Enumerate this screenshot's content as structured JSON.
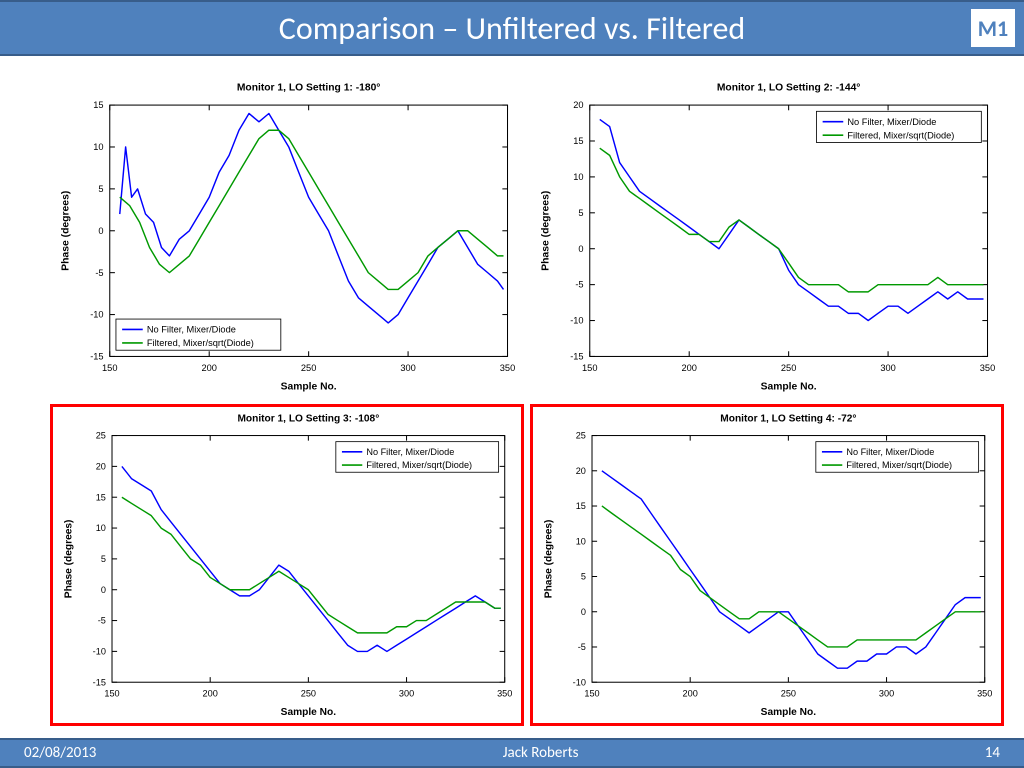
{
  "header": {
    "title": "Comparison – Unfiltered vs. Filtered",
    "badge": "M1"
  },
  "footer": {
    "date": "02/08/2013",
    "author": "Jack Roberts",
    "page": "14"
  },
  "colors": {
    "header_bg": "#4f81bd",
    "header_border": "#385d8a",
    "highlight_border": "#ff0000",
    "series_nofilter": "#0000ff",
    "series_filtered": "#009900",
    "axis": "#000000"
  },
  "legend": {
    "items": [
      {
        "label": "No Filter, Mixer/Diode",
        "color": "#0000ff"
      },
      {
        "label": "Filtered, Mixer/sqrt(Diode)",
        "color": "#009900"
      }
    ]
  },
  "axes": {
    "xlabel": "Sample No.",
    "ylabel": "Phase (degrees)",
    "x": {
      "min": 150,
      "max": 350,
      "step": 50
    }
  },
  "charts": [
    {
      "title": "Monitor 1, LO Setting 1: -180°",
      "legend_pos": "bottom-left",
      "y": {
        "min": -15,
        "max": 15,
        "step": 5
      },
      "highlight": false,
      "series": [
        {
          "key": "nofilter",
          "color": "#0000ff",
          "x": [
            155,
            158,
            161,
            164,
            168,
            172,
            176,
            180,
            185,
            190,
            195,
            200,
            205,
            210,
            215,
            220,
            225,
            230,
            235,
            240,
            245,
            250,
            255,
            260,
            265,
            270,
            275,
            280,
            285,
            290,
            295,
            300,
            305,
            310,
            315,
            320,
            325,
            330,
            335,
            340,
            345,
            348
          ],
          "y": [
            2,
            10,
            4,
            5,
            2,
            1,
            -2,
            -3,
            -1,
            0,
            2,
            4,
            7,
            9,
            12,
            14,
            13,
            14,
            12,
            10,
            7,
            4,
            2,
            0,
            -3,
            -6,
            -8,
            -9,
            -10,
            -11,
            -10,
            -8,
            -6,
            -4,
            -2,
            -1,
            0,
            -2,
            -4,
            -5,
            -6,
            -7
          ]
        },
        {
          "key": "filtered",
          "color": "#009900",
          "x": [
            155,
            160,
            165,
            170,
            175,
            180,
            185,
            190,
            195,
            200,
            205,
            210,
            215,
            220,
            225,
            230,
            235,
            240,
            245,
            250,
            255,
            260,
            265,
            270,
            275,
            280,
            285,
            290,
            295,
            300,
            305,
            310,
            315,
            320,
            325,
            330,
            335,
            340,
            345,
            348
          ],
          "y": [
            4,
            3,
            1,
            -2,
            -4,
            -5,
            -4,
            -3,
            -1,
            1,
            3,
            5,
            7,
            9,
            11,
            12,
            12,
            11,
            9,
            7,
            5,
            3,
            1,
            -1,
            -3,
            -5,
            -6,
            -7,
            -7,
            -6,
            -5,
            -3,
            -2,
            -1,
            0,
            0,
            -1,
            -2,
            -3,
            -3
          ]
        }
      ]
    },
    {
      "title": "Monitor 1, LO Setting 2: -144°",
      "legend_pos": "top-right",
      "y": {
        "min": -15,
        "max": 20,
        "step": 5
      },
      "highlight": false,
      "series": [
        {
          "key": "nofilter",
          "color": "#0000ff",
          "x": [
            155,
            160,
            165,
            170,
            175,
            180,
            185,
            190,
            195,
            200,
            205,
            210,
            215,
            220,
            225,
            230,
            235,
            240,
            245,
            250,
            255,
            260,
            265,
            270,
            275,
            280,
            285,
            290,
            295,
            300,
            305,
            310,
            315,
            320,
            325,
            330,
            335,
            340,
            345,
            348
          ],
          "y": [
            18,
            17,
            12,
            10,
            8,
            7,
            6,
            5,
            4,
            3,
            2,
            1,
            0,
            2,
            4,
            3,
            2,
            1,
            0,
            -3,
            -5,
            -6,
            -7,
            -8,
            -8,
            -9,
            -9,
            -10,
            -9,
            -8,
            -8,
            -9,
            -8,
            -7,
            -6,
            -7,
            -6,
            -7,
            -7,
            -7
          ]
        },
        {
          "key": "filtered",
          "color": "#009900",
          "x": [
            155,
            160,
            165,
            170,
            175,
            180,
            185,
            190,
            195,
            200,
            205,
            210,
            215,
            220,
            225,
            230,
            235,
            240,
            245,
            250,
            255,
            260,
            265,
            270,
            275,
            280,
            285,
            290,
            295,
            300,
            305,
            310,
            315,
            320,
            325,
            330,
            335,
            340,
            345,
            348
          ],
          "y": [
            14,
            13,
            10,
            8,
            7,
            6,
            5,
            4,
            3,
            2,
            2,
            1,
            1,
            3,
            4,
            3,
            2,
            1,
            0,
            -2,
            -4,
            -5,
            -5,
            -5,
            -5,
            -6,
            -6,
            -6,
            -5,
            -5,
            -5,
            -5,
            -5,
            -5,
            -4,
            -5,
            -5,
            -5,
            -5,
            -5
          ]
        }
      ]
    },
    {
      "title": "Monitor 1, LO Setting 3: -108°",
      "legend_pos": "top-right",
      "y": {
        "min": -15,
        "max": 25,
        "step": 5
      },
      "highlight": true,
      "series": [
        {
          "key": "nofilter",
          "color": "#0000ff",
          "x": [
            155,
            160,
            165,
            170,
            175,
            180,
            185,
            190,
            195,
            200,
            205,
            210,
            215,
            220,
            225,
            230,
            235,
            240,
            245,
            250,
            255,
            260,
            265,
            270,
            275,
            280,
            285,
            290,
            295,
            300,
            305,
            310,
            315,
            320,
            325,
            330,
            335,
            340,
            345,
            348
          ],
          "y": [
            20,
            18,
            17,
            16,
            13,
            11,
            9,
            7,
            5,
            3,
            1,
            0,
            -1,
            -1,
            0,
            2,
            4,
            3,
            1,
            -1,
            -3,
            -5,
            -7,
            -9,
            -10,
            -10,
            -9,
            -10,
            -9,
            -8,
            -7,
            -6,
            -5,
            -4,
            -3,
            -2,
            -1,
            -2,
            -3,
            -3
          ]
        },
        {
          "key": "filtered",
          "color": "#009900",
          "x": [
            155,
            160,
            165,
            170,
            175,
            180,
            185,
            190,
            195,
            200,
            205,
            210,
            215,
            220,
            225,
            230,
            235,
            240,
            245,
            250,
            255,
            260,
            265,
            270,
            275,
            280,
            285,
            290,
            295,
            300,
            305,
            310,
            315,
            320,
            325,
            330,
            335,
            340,
            345,
            348
          ],
          "y": [
            15,
            14,
            13,
            12,
            10,
            9,
            7,
            5,
            4,
            2,
            1,
            0,
            0,
            0,
            1,
            2,
            3,
            2,
            1,
            0,
            -2,
            -4,
            -5,
            -6,
            -7,
            -7,
            -7,
            -7,
            -6,
            -6,
            -5,
            -5,
            -4,
            -3,
            -2,
            -2,
            -2,
            -2,
            -3,
            -3
          ]
        }
      ]
    },
    {
      "title": "Monitor 1, LO Setting 4: -72°",
      "legend_pos": "top-right",
      "y": {
        "min": -10,
        "max": 25,
        "step": 5
      },
      "highlight": true,
      "series": [
        {
          "key": "nofilter",
          "color": "#0000ff",
          "x": [
            155,
            160,
            165,
            170,
            175,
            180,
            185,
            190,
            195,
            200,
            205,
            210,
            215,
            220,
            225,
            230,
            235,
            240,
            245,
            250,
            255,
            260,
            265,
            270,
            275,
            280,
            285,
            290,
            295,
            300,
            305,
            310,
            315,
            320,
            325,
            330,
            335,
            340,
            345,
            348
          ],
          "y": [
            20,
            19,
            18,
            17,
            16,
            14,
            12,
            10,
            8,
            6,
            4,
            2,
            0,
            -1,
            -2,
            -3,
            -2,
            -1,
            0,
            0,
            -2,
            -4,
            -6,
            -7,
            -8,
            -8,
            -7,
            -7,
            -6,
            -6,
            -5,
            -5,
            -6,
            -5,
            -3,
            -1,
            1,
            2,
            2,
            2
          ]
        },
        {
          "key": "filtered",
          "color": "#009900",
          "x": [
            155,
            160,
            165,
            170,
            175,
            180,
            185,
            190,
            195,
            200,
            205,
            210,
            215,
            220,
            225,
            230,
            235,
            240,
            245,
            250,
            255,
            260,
            265,
            270,
            275,
            280,
            285,
            290,
            295,
            300,
            305,
            310,
            315,
            320,
            325,
            330,
            335,
            340,
            345,
            348
          ],
          "y": [
            15,
            14,
            13,
            12,
            11,
            10,
            9,
            8,
            6,
            5,
            3,
            2,
            1,
            0,
            -1,
            -1,
            0,
            0,
            0,
            -1,
            -2,
            -3,
            -4,
            -5,
            -5,
            -5,
            -4,
            -4,
            -4,
            -4,
            -4,
            -4,
            -4,
            -3,
            -2,
            -1,
            0,
            0,
            0,
            0
          ]
        }
      ]
    }
  ]
}
